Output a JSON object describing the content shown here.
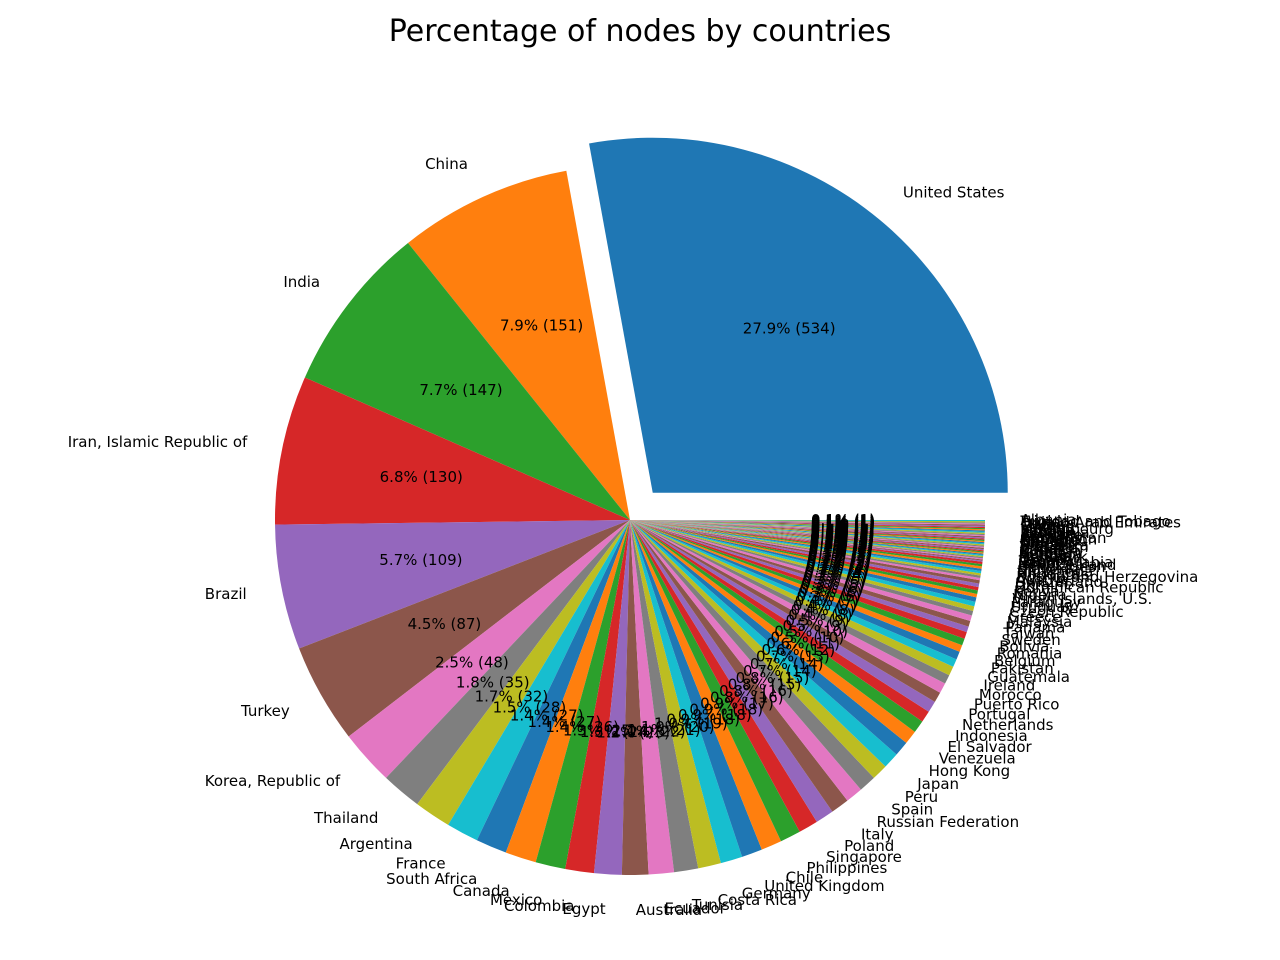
{
  "chart_data": {
    "type": "pie",
    "title": "Percentage of nodes by countries",
    "value_format": "{pct}% ({count})",
    "start_angle_deg": 0,
    "direction": "counterclockwise",
    "exploded": [
      "United States"
    ],
    "palette": [
      "#1f77b4",
      "#ff7f0e",
      "#2ca02c",
      "#d62728",
      "#9467bd",
      "#8c564b",
      "#e377c2",
      "#7f7f7f",
      "#bcbd22",
      "#17becf"
    ],
    "slices": [
      {
        "label": "United States",
        "value": 534
      },
      {
        "label": "China",
        "value": 151
      },
      {
        "label": "India",
        "value": 147
      },
      {
        "label": "Iran, Islamic Republic of",
        "value": 130
      },
      {
        "label": "Brazil",
        "value": 109
      },
      {
        "label": "Turkey",
        "value": 87
      },
      {
        "label": "Korea, Republic of",
        "value": 48
      },
      {
        "label": "Thailand",
        "value": 35
      },
      {
        "label": "Argentina",
        "value": 32
      },
      {
        "label": "France",
        "value": 28
      },
      {
        "label": "South Africa",
        "value": 27
      },
      {
        "label": "Canada",
        "value": 27
      },
      {
        "label": "Mexico",
        "value": 26
      },
      {
        "label": "Colombia",
        "value": 25
      },
      {
        "label": "Egypt",
        "value": 24
      },
      {
        "label": "Australia",
        "value": 23
      },
      {
        "label": "Ecuador",
        "value": 22
      },
      {
        "label": "Tunisia",
        "value": 21
      },
      {
        "label": "Costa Rica",
        "value": 20
      },
      {
        "label": "Germany",
        "value": 19
      },
      {
        "label": "United Kingdom",
        "value": 18
      },
      {
        "label": "Chile",
        "value": 18
      },
      {
        "label": "Philippines",
        "value": 18
      },
      {
        "label": "Singapore",
        "value": 17
      },
      {
        "label": "Poland",
        "value": 16
      },
      {
        "label": "Italy",
        "value": 16
      },
      {
        "label": "Russian Federation",
        "value": 15
      },
      {
        "label": "Spain",
        "value": 15
      },
      {
        "label": "Peru",
        "value": 14
      },
      {
        "label": "Japan",
        "value": 14
      },
      {
        "label": "Hong Kong",
        "value": 13
      },
      {
        "label": "Venezuela",
        "value": 12
      },
      {
        "label": "El Salvador",
        "value": 11
      },
      {
        "label": "Indonesia",
        "value": 10
      },
      {
        "label": "Netherlands",
        "value": 10
      },
      {
        "label": "Portugal",
        "value": 9
      },
      {
        "label": "Puerto Rico",
        "value": 9
      },
      {
        "label": "Morocco",
        "value": 8
      },
      {
        "label": "Ireland",
        "value": 8
      },
      {
        "label": "Guatemala",
        "value": 7
      },
      {
        "label": "Pakistan",
        "value": 7
      },
      {
        "label": "Belgium",
        "value": 6
      },
      {
        "label": "Romania",
        "value": 6
      },
      {
        "label": "Bolivia",
        "value": 6
      },
      {
        "label": "Sweden",
        "value": 5
      },
      {
        "label": "Taiwan",
        "value": 5
      },
      {
        "label": "Panama",
        "value": 5
      },
      {
        "label": "Malaysia",
        "value": 4
      },
      {
        "label": "Greece",
        "value": 4
      },
      {
        "label": "Czech Republic",
        "value": 4
      },
      {
        "label": "Uruguay",
        "value": 4
      },
      {
        "label": "Paraguay",
        "value": 3
      },
      {
        "label": "Virgin Islands, U.S.",
        "value": 3
      },
      {
        "label": "Nigeria",
        "value": 3
      },
      {
        "label": "Kenya",
        "value": 3
      },
      {
        "label": "Dominican Republic",
        "value": 3
      },
      {
        "label": "Ukraine",
        "value": 2
      },
      {
        "label": "Switzerland",
        "value": 2
      },
      {
        "label": "Austria",
        "value": 2
      },
      {
        "label": "Bosnia and Herzegovina",
        "value": 2
      },
      {
        "label": "Honduras",
        "value": 2
      },
      {
        "label": "Nicaragua",
        "value": 2
      },
      {
        "label": "Slovenia",
        "value": 2
      },
      {
        "label": "Bangladesh",
        "value": 2
      },
      {
        "label": "New Zealand",
        "value": 1
      },
      {
        "label": "Israel",
        "value": 1
      },
      {
        "label": "Saudi Arabia",
        "value": 1
      },
      {
        "label": "Jordan",
        "value": 1
      },
      {
        "label": "Lebanon",
        "value": 1
      },
      {
        "label": "Norway",
        "value": 1
      },
      {
        "label": "Denmark",
        "value": 1
      },
      {
        "label": "Finland",
        "value": 1
      },
      {
        "label": "Hungary",
        "value": 1
      },
      {
        "label": "Serbia",
        "value": 1
      },
      {
        "label": "Croatia",
        "value": 1
      },
      {
        "label": "Bulgaria",
        "value": 1
      },
      {
        "label": "Cuba",
        "value": 1
      },
      {
        "label": "Jamaica",
        "value": 1
      },
      {
        "label": "Viet Nam",
        "value": 1
      },
      {
        "label": "Sri Lanka",
        "value": 1
      },
      {
        "label": "Nepal",
        "value": 1
      },
      {
        "label": "Algeria",
        "value": 1
      },
      {
        "label": "Ghana",
        "value": 1
      },
      {
        "label": "Ethiopia",
        "value": 1
      },
      {
        "label": "Cameroon",
        "value": 1
      },
      {
        "label": "Kazakhstan",
        "value": 1
      },
      {
        "label": "Georgia",
        "value": 1
      },
      {
        "label": "Armenia",
        "value": 1
      },
      {
        "label": "Belarus",
        "value": 1
      },
      {
        "label": "Lithuania",
        "value": 1
      },
      {
        "label": "Latvia",
        "value": 1
      },
      {
        "label": "Estonia",
        "value": 1
      },
      {
        "label": "Luxembourg",
        "value": 1
      },
      {
        "label": "Iceland",
        "value": 1
      },
      {
        "label": "Cyprus",
        "value": 1
      },
      {
        "label": "Malta",
        "value": 1
      },
      {
        "label": "Qatar",
        "value": 1
      },
      {
        "label": "United Arab Emirates",
        "value": 1
      },
      {
        "label": "Trinidad and Tobago",
        "value": 1
      },
      {
        "label": "Albania",
        "value": 1
      }
    ]
  }
}
